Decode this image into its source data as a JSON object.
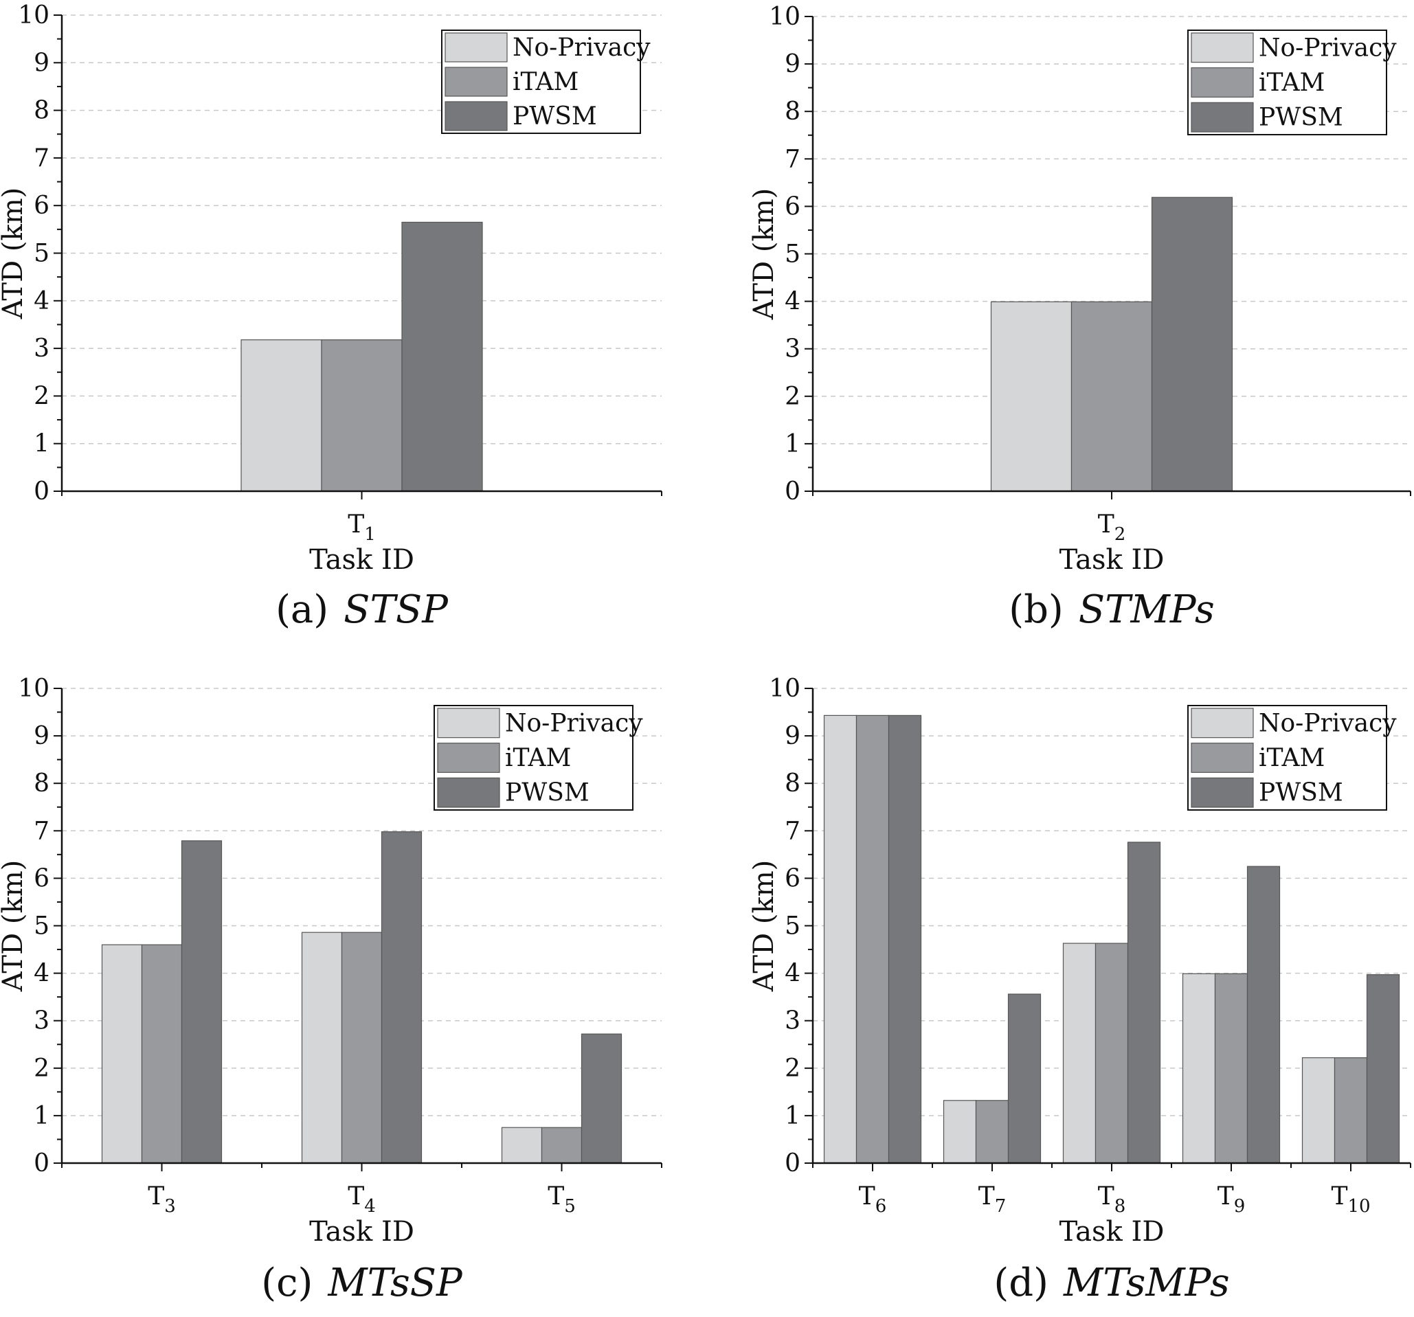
{
  "chart_data": [
    {
      "type": "bar",
      "caption_label": "(a)",
      "caption_name": "STSP",
      "xlabel": "Task ID",
      "ylabel": "ATD (km)",
      "ylim": [
        0,
        10
      ],
      "yticks": [
        0,
        1,
        2,
        3,
        4,
        5,
        6,
        7,
        8,
        9,
        10
      ],
      "grid": "horizontal dashed",
      "legend_position": "top-right",
      "categories": [
        {
          "base": "T",
          "sub": "1"
        }
      ],
      "series": [
        {
          "name": "No-Privacy",
          "color": "#d5d6d8",
          "values": [
            3.18
          ]
        },
        {
          "name": "iTAM",
          "color": "#999a9e",
          "values": [
            3.18
          ]
        },
        {
          "name": "PWSM",
          "color": "#77787b",
          "values": [
            5.65
          ]
        }
      ]
    },
    {
      "type": "bar",
      "caption_label": "(b)",
      "caption_name": "STMPs",
      "xlabel": "Task ID",
      "ylabel": "ATD (km)",
      "ylim": [
        0,
        10
      ],
      "yticks": [
        0,
        1,
        2,
        3,
        4,
        5,
        6,
        7,
        8,
        9,
        10
      ],
      "grid": "horizontal dashed",
      "legend_position": "top-right",
      "categories": [
        {
          "base": "T",
          "sub": "2"
        }
      ],
      "series": [
        {
          "name": "No-Privacy",
          "color": "#d5d6d8",
          "values": [
            3.99
          ]
        },
        {
          "name": "iTAM",
          "color": "#999a9e",
          "values": [
            3.99
          ]
        },
        {
          "name": "PWSM",
          "color": "#77787b",
          "values": [
            6.19
          ]
        }
      ]
    },
    {
      "type": "bar",
      "caption_label": "(c)",
      "caption_name": "MTsSP",
      "xlabel": "Task ID",
      "ylabel": "ATD (km)",
      "ylim": [
        0,
        10
      ],
      "yticks": [
        0,
        1,
        2,
        3,
        4,
        5,
        6,
        7,
        8,
        9,
        10
      ],
      "grid": "horizontal dashed",
      "legend_position": "top-right",
      "categories": [
        {
          "base": "T",
          "sub": "3"
        },
        {
          "base": "T",
          "sub": "4"
        },
        {
          "base": "T",
          "sub": "5"
        }
      ],
      "series": [
        {
          "name": "No-Privacy",
          "color": "#d5d6d8",
          "values": [
            4.6,
            4.86,
            0.75
          ]
        },
        {
          "name": "iTAM",
          "color": "#999a9e",
          "values": [
            4.6,
            4.86,
            0.75
          ]
        },
        {
          "name": "PWSM",
          "color": "#77787b",
          "values": [
            6.79,
            6.98,
            2.72
          ]
        }
      ]
    },
    {
      "type": "bar",
      "caption_label": "(d)",
      "caption_name": "MTsMPs",
      "xlabel": "Task ID",
      "ylabel": "ATD (km)",
      "ylim": [
        0,
        10
      ],
      "yticks": [
        0,
        1,
        2,
        3,
        4,
        5,
        6,
        7,
        8,
        9,
        10
      ],
      "grid": "horizontal dashed",
      "legend_position": "top-right",
      "categories": [
        {
          "base": "T",
          "sub": "6"
        },
        {
          "base": "T",
          "sub": "7"
        },
        {
          "base": "T",
          "sub": "8"
        },
        {
          "base": "T",
          "sub": "9"
        },
        {
          "base": "T",
          "sub": "10"
        }
      ],
      "series": [
        {
          "name": "No-Privacy",
          "color": "#d5d6d8",
          "values": [
            9.43,
            1.32,
            4.63,
            3.99,
            2.22
          ]
        },
        {
          "name": "iTAM",
          "color": "#999a9e",
          "values": [
            9.43,
            1.32,
            4.63,
            3.99,
            2.22
          ]
        },
        {
          "name": "PWSM",
          "color": "#77787b",
          "values": [
            9.43,
            3.56,
            6.76,
            6.25,
            3.97
          ]
        }
      ]
    }
  ]
}
